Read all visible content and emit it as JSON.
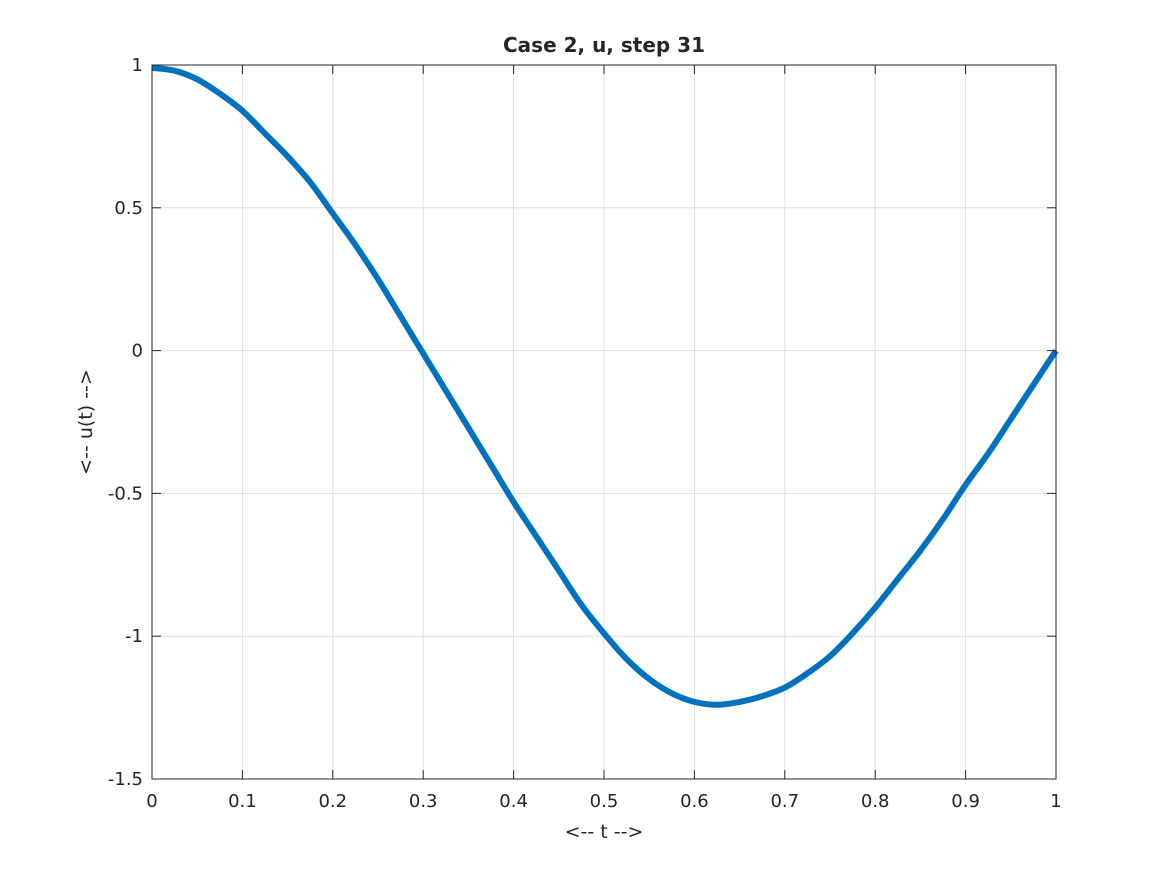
{
  "chart_data": {
    "type": "line",
    "title": "Case 2, u, step 31",
    "xlabel": "<-- t -->",
    "ylabel": "<-- u(t) -->",
    "xlim": [
      0,
      1
    ],
    "ylim": [
      -1.5,
      1
    ],
    "xticks": [
      0,
      0.1,
      0.2,
      0.3,
      0.4,
      0.5,
      0.6,
      0.7,
      0.8,
      0.9,
      1
    ],
    "xtick_labels": [
      "0",
      "0.1",
      "0.2",
      "0.3",
      "0.4",
      "0.5",
      "0.6",
      "0.7",
      "0.8",
      "0.9",
      "1"
    ],
    "yticks": [
      -1.5,
      -1,
      -0.5,
      0,
      0.5,
      1
    ],
    "ytick_labels": [
      "-1.5",
      "-1",
      "-0.5",
      "0",
      "0.5",
      "1"
    ],
    "grid": true,
    "series": [
      {
        "color": "#0072BD",
        "x": [
          0,
          0.025,
          0.05,
          0.075,
          0.1,
          0.125,
          0.15,
          0.175,
          0.2,
          0.225,
          0.25,
          0.275,
          0.3,
          0.325,
          0.35,
          0.375,
          0.4,
          0.425,
          0.45,
          0.475,
          0.5,
          0.525,
          0.55,
          0.575,
          0.6,
          0.625,
          0.65,
          0.675,
          0.7,
          0.725,
          0.75,
          0.775,
          0.8,
          0.825,
          0.85,
          0.875,
          0.9,
          0.925,
          0.95,
          0.975,
          1
        ],
        "y": [
          0.99,
          0.98,
          0.95,
          0.9,
          0.84,
          0.76,
          0.68,
          0.59,
          0.48,
          0.37,
          0.25,
          0.12,
          -0.01,
          -0.14,
          -0.27,
          -0.4,
          -0.53,
          -0.65,
          -0.77,
          -0.89,
          -0.99,
          -1.08,
          -1.15,
          -1.2,
          -1.23,
          -1.24,
          -1.23,
          -1.21,
          -1.18,
          -1.13,
          -1.07,
          -0.99,
          -0.9,
          -0.8,
          -0.7,
          -0.59,
          -0.47,
          -0.36,
          -0.24,
          -0.12,
          0
        ]
      }
    ]
  }
}
